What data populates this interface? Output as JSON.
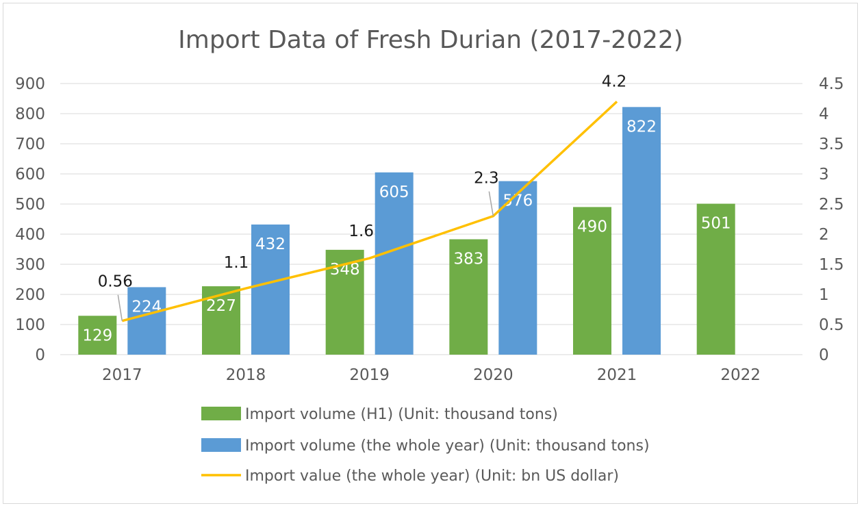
{
  "chart_data": {
    "type": "bar",
    "title": "Import Data of Fresh Durian (2017-2022)",
    "categories": [
      "2017",
      "2018",
      "2019",
      "2020",
      "2021",
      "2022"
    ],
    "left_axis": {
      "ylim": [
        0,
        900
      ],
      "ticks": [
        "0",
        "100",
        "200",
        "300",
        "400",
        "500",
        "600",
        "700",
        "800",
        "900"
      ]
    },
    "right_axis": {
      "ylim": [
        0,
        4.5
      ],
      "ticks": [
        "0",
        "0.5",
        "1",
        "1.5",
        "2",
        "2.5",
        "3",
        "3.5",
        "4",
        "4.5"
      ]
    },
    "grid": true,
    "legend_position": "bottom",
    "series": [
      {
        "name": "Import volume (H1) (Unit: thousand tons)",
        "type": "bar",
        "axis": "left",
        "color": "#70ad47",
        "values": [
          129,
          227,
          348,
          383,
          490,
          501
        ]
      },
      {
        "name": "Import volume (the whole year) (Unit: thousand tons)",
        "type": "bar",
        "axis": "left",
        "color": "#5b9bd5",
        "values": [
          224,
          432,
          605,
          576,
          822,
          null
        ]
      },
      {
        "name": "Import value (the whole year) (Unit: bn US dollar)",
        "type": "line",
        "axis": "right",
        "color": "#ffc000",
        "values": [
          0.56,
          1.1,
          1.6,
          2.3,
          4.2,
          null
        ],
        "labels": [
          "0.56",
          "1.1",
          "1.6",
          "2.3",
          "4.2",
          null
        ]
      }
    ]
  }
}
